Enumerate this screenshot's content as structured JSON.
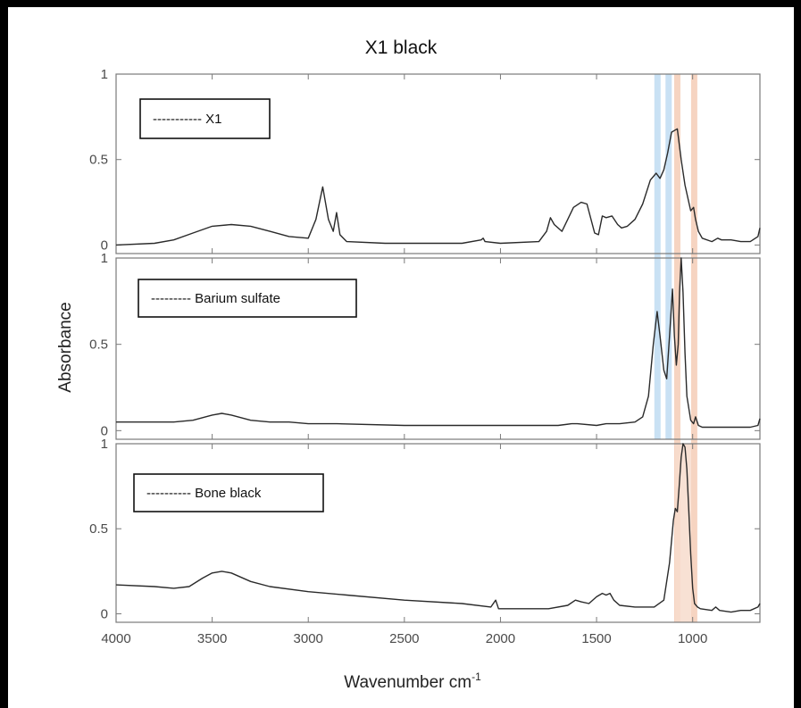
{
  "chart_data": {
    "type": "line",
    "title": "X1 black",
    "xlabel_main": "Wavenumber cm",
    "xlabel_sup": "-1",
    "ylabel": "Absorbance",
    "xlim": [
      4000,
      650
    ],
    "ylim": [
      -0.05,
      1.0
    ],
    "x_ticks": [
      4000,
      3500,
      3000,
      2500,
      2000,
      1500,
      1000
    ],
    "y_ticks": [
      0,
      0.5,
      1
    ],
    "y_tick_labels": [
      "0",
      "0.5",
      "1"
    ],
    "highlight_bands": [
      {
        "x": 1183,
        "color": "#bfdcf2"
      },
      {
        "x": 1125,
        "color": "#bfdcf2"
      },
      {
        "x": 1080,
        "color": "#f4ccb6"
      },
      {
        "x": 992,
        "color": "#f4ccb6"
      },
      {
        "x": 1050,
        "color": "#f7dccd"
      }
    ],
    "panels": [
      {
        "legend": "----------- X1",
        "series": {
          "x": [
            4000,
            3800,
            3700,
            3600,
            3500,
            3400,
            3300,
            3200,
            3100,
            3000,
            2960,
            2925,
            2895,
            2870,
            2853,
            2835,
            2800,
            2600,
            2400,
            2200,
            2100,
            2090,
            2080,
            2000,
            1800,
            1760,
            1740,
            1720,
            1680,
            1650,
            1620,
            1580,
            1550,
            1510,
            1490,
            1470,
            1450,
            1420,
            1390,
            1370,
            1340,
            1300,
            1260,
            1220,
            1190,
            1170,
            1150,
            1130,
            1110,
            1095,
            1080,
            1060,
            1040,
            1010,
            995,
            985,
            970,
            950,
            900,
            870,
            850,
            800,
            750,
            700,
            660,
            650
          ],
          "y": [
            0,
            0.01,
            0.03,
            0.07,
            0.11,
            0.12,
            0.11,
            0.08,
            0.05,
            0.04,
            0.15,
            0.34,
            0.15,
            0.08,
            0.19,
            0.06,
            0.02,
            0.01,
            0.01,
            0.01,
            0.03,
            0.04,
            0.02,
            0.01,
            0.02,
            0.08,
            0.16,
            0.12,
            0.08,
            0.15,
            0.22,
            0.25,
            0.24,
            0.07,
            0.06,
            0.17,
            0.16,
            0.17,
            0.12,
            0.1,
            0.11,
            0.15,
            0.24,
            0.38,
            0.42,
            0.39,
            0.44,
            0.54,
            0.66,
            0.67,
            0.68,
            0.5,
            0.35,
            0.2,
            0.22,
            0.15,
            0.08,
            0.04,
            0.02,
            0.04,
            0.03,
            0.03,
            0.02,
            0.02,
            0.05,
            0.1
          ]
        }
      },
      {
        "legend": "--------- Barium sulfate",
        "series": {
          "x": [
            4000,
            3800,
            3700,
            3600,
            3500,
            3450,
            3400,
            3300,
            3200,
            3100,
            3000,
            2925,
            2850,
            2500,
            2000,
            1700,
            1630,
            1600,
            1500,
            1450,
            1420,
            1380,
            1300,
            1260,
            1230,
            1205,
            1185,
            1170,
            1150,
            1135,
            1120,
            1105,
            1095,
            1085,
            1075,
            1068,
            1060,
            1050,
            1040,
            1030,
            1010,
            995,
            985,
            970,
            950,
            900,
            850,
            800,
            750,
            700,
            660,
            650
          ],
          "y": [
            0.05,
            0.05,
            0.05,
            0.06,
            0.09,
            0.1,
            0.09,
            0.06,
            0.05,
            0.05,
            0.04,
            0.04,
            0.04,
            0.03,
            0.03,
            0.03,
            0.04,
            0.04,
            0.03,
            0.04,
            0.04,
            0.04,
            0.05,
            0.08,
            0.2,
            0.5,
            0.69,
            0.55,
            0.35,
            0.3,
            0.55,
            0.82,
            0.55,
            0.38,
            0.5,
            0.8,
            1.0,
            0.8,
            0.45,
            0.2,
            0.06,
            0.04,
            0.08,
            0.03,
            0.02,
            0.02,
            0.02,
            0.02,
            0.02,
            0.02,
            0.03,
            0.07
          ]
        }
      },
      {
        "legend": "---------- Bone black",
        "series": {
          "x": [
            4000,
            3800,
            3700,
            3620,
            3550,
            3500,
            3450,
            3400,
            3300,
            3200,
            3000,
            2800,
            2500,
            2200,
            2050,
            2025,
            2010,
            1900,
            1750,
            1650,
            1610,
            1580,
            1540,
            1500,
            1470,
            1450,
            1430,
            1410,
            1380,
            1300,
            1200,
            1150,
            1120,
            1100,
            1090,
            1080,
            1070,
            1060,
            1050,
            1040,
            1030,
            1020,
            1010,
            1000,
            990,
            975,
            960,
            900,
            880,
            860,
            800,
            750,
            700,
            660,
            650
          ],
          "y": [
            0.17,
            0.16,
            0.15,
            0.16,
            0.21,
            0.24,
            0.25,
            0.24,
            0.19,
            0.16,
            0.13,
            0.11,
            0.08,
            0.06,
            0.04,
            0.08,
            0.03,
            0.03,
            0.03,
            0.05,
            0.08,
            0.07,
            0.06,
            0.1,
            0.12,
            0.11,
            0.12,
            0.08,
            0.05,
            0.04,
            0.04,
            0.08,
            0.3,
            0.55,
            0.62,
            0.6,
            0.75,
            0.92,
            1.0,
            0.98,
            0.85,
            0.6,
            0.35,
            0.15,
            0.06,
            0.04,
            0.03,
            0.02,
            0.04,
            0.02,
            0.01,
            0.02,
            0.02,
            0.04,
            0.06
          ]
        }
      }
    ]
  }
}
